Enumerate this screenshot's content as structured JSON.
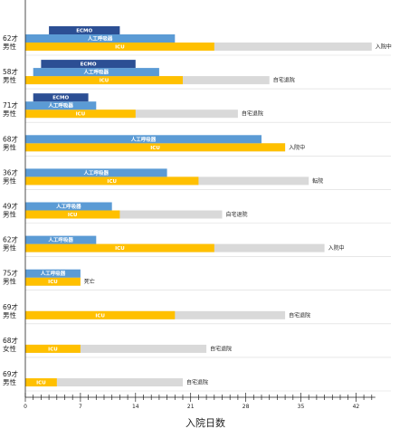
{
  "chart_data": {
    "type": "bar",
    "orientation": "horizontal",
    "xlabel": "入院日数",
    "xlim": [
      0,
      44
    ],
    "xticks": [
      0,
      7,
      14,
      21,
      28,
      35,
      42
    ],
    "colors": {
      "ecmo": "#2c4f94",
      "ventilator": "#5b9bd5",
      "icu": "#ffc000",
      "total": "#d9d9d9",
      "gridline": "#d9d9d9",
      "axis": "#222222"
    },
    "phase_labels": {
      "ecmo": "ECMO",
      "ventilator": "人工呼吸器",
      "icu": "ICU"
    },
    "patients": [
      {
        "age": "62才",
        "sex": "男性",
        "status": "入院中",
        "total": 44,
        "icu": 24,
        "ventilator": [
          0,
          19
        ],
        "ecmo": [
          3,
          12
        ]
      },
      {
        "age": "58才",
        "sex": "男性",
        "status": "自宅退院",
        "total": 31,
        "icu": 20,
        "ventilator": [
          1,
          17
        ],
        "ecmo": [
          2,
          14
        ]
      },
      {
        "age": "71才",
        "sex": "男性",
        "status": "自宅退院",
        "total": 27,
        "icu": 14,
        "ventilator": [
          0,
          9
        ],
        "ecmo": [
          1,
          8
        ]
      },
      {
        "age": "68才",
        "sex": "男性",
        "status": "入院中",
        "total": 33,
        "icu": 33,
        "ventilator": [
          0,
          30
        ],
        "ecmo": null
      },
      {
        "age": "36才",
        "sex": "男性",
        "status": "転院",
        "total": 36,
        "icu": 22,
        "ventilator": [
          0,
          18
        ],
        "ecmo": null
      },
      {
        "age": "49才",
        "sex": "男性",
        "status": "自宅退院",
        "total": 25,
        "icu": 12,
        "ventilator": [
          0,
          11
        ],
        "ecmo": null
      },
      {
        "age": "62才",
        "sex": "男性",
        "status": "入院中",
        "total": 38,
        "icu": 24,
        "ventilator": [
          0,
          9
        ],
        "ecmo": null
      },
      {
        "age": "75才",
        "sex": "男性",
        "status": "死亡",
        "total": 7,
        "icu": 7,
        "ventilator": [
          0,
          7
        ],
        "ecmo": null
      },
      {
        "age": "69才",
        "sex": "男性",
        "status": "自宅退院",
        "total": 33,
        "icu": 19,
        "ventilator": null,
        "ecmo": null
      },
      {
        "age": "68才",
        "sex": "女性",
        "status": "自宅退院",
        "total": 23,
        "icu": 7,
        "ventilator": null,
        "ecmo": null
      },
      {
        "age": "69才",
        "sex": "男性",
        "status": "自宅退院",
        "total": 20,
        "icu": 4,
        "ventilator": null,
        "ecmo": null
      }
    ]
  }
}
